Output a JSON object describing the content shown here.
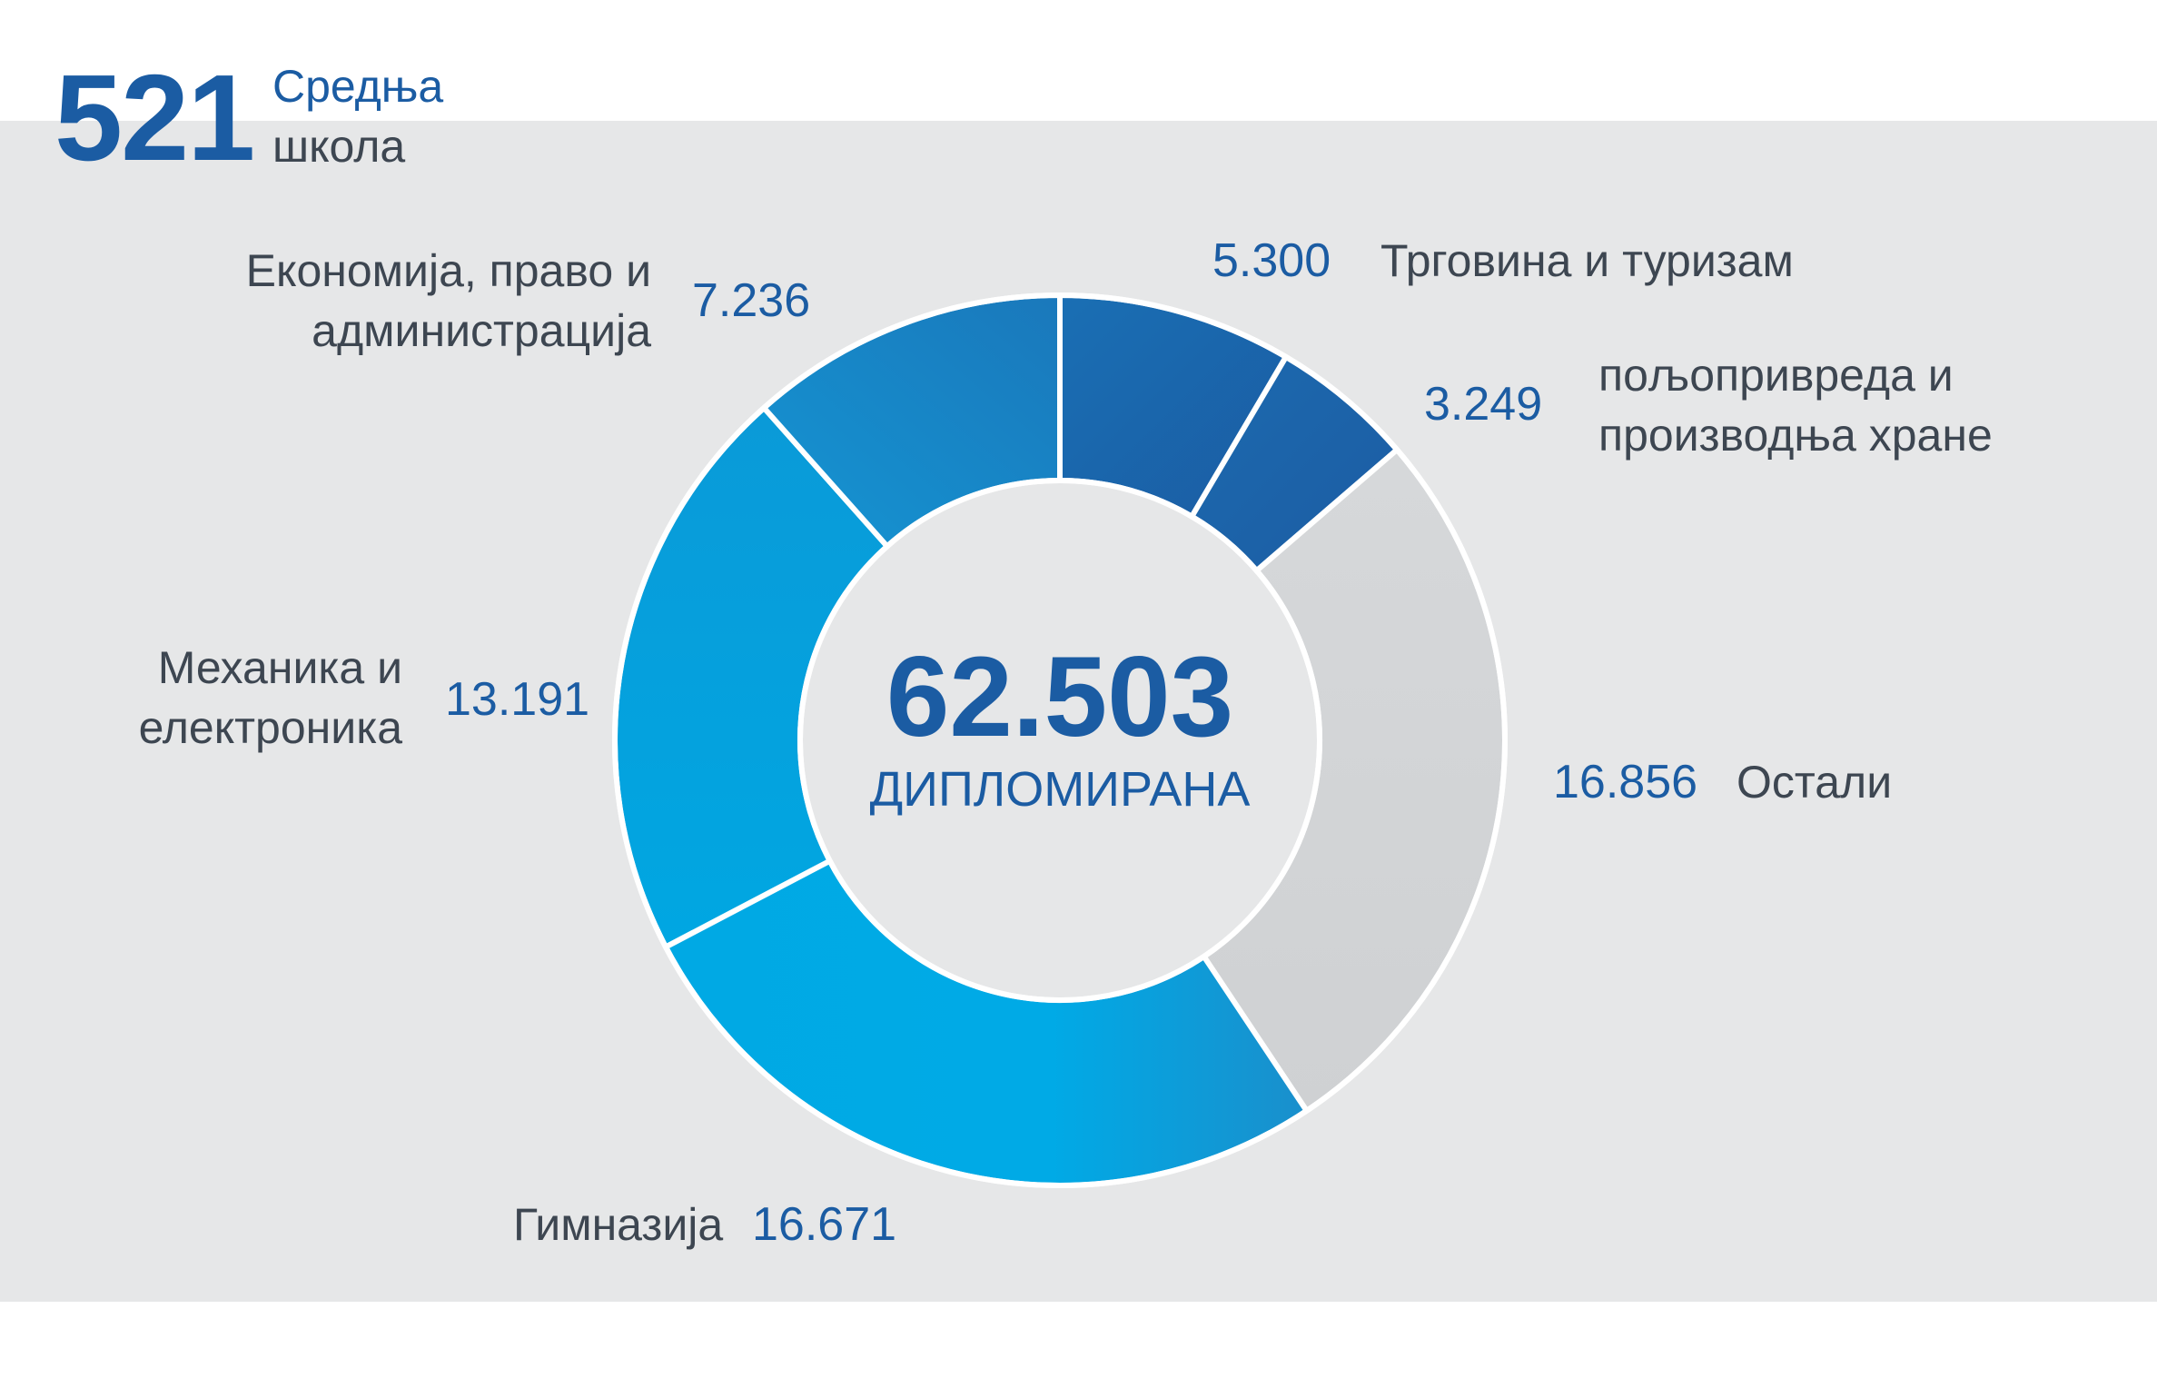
{
  "header": {
    "count": "521",
    "label_line1": "Средња",
    "label_line2": "школа"
  },
  "center": {
    "total": "62.503",
    "label": "ДИПЛОМИРАНА"
  },
  "labels": {
    "trade": "Трговина и туризам",
    "agri_line1": "пољопривреда и",
    "agri_line2": "производња хране",
    "other": "Остали",
    "gym": "Гимназија",
    "mech_line1": "Механика и",
    "mech_line2": "електроника",
    "econ_line1": "Економија, право и",
    "econ_line2": "администрација"
  },
  "values": {
    "trade": "5.300",
    "agri": "3.249",
    "other": "16.856",
    "gym": "16.671",
    "mech": "13.191",
    "econ": "7.236"
  },
  "chart_data": {
    "type": "pie",
    "donut": true,
    "total": 62503,
    "categories": [
      "Трговина и туризам",
      "пољопривреда и производња хране",
      "Остали",
      "Гимназија",
      "Механика и електроника",
      "Економија, право и администрација"
    ],
    "values": [
      5300,
      3249,
      16856,
      16671,
      13191,
      7236
    ],
    "colors": [
      "#1b5ca3",
      "#1b5ca3",
      "#d1d3d4",
      "#00a7e1",
      "#0b98d8",
      "#1a83c5"
    ]
  }
}
